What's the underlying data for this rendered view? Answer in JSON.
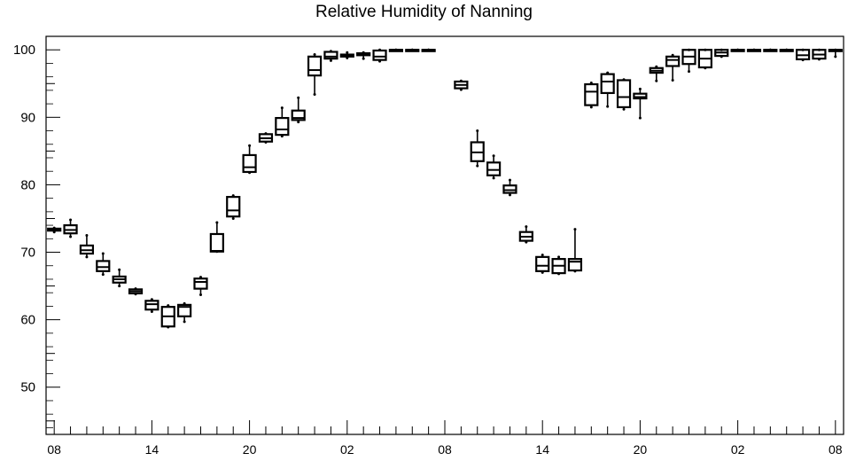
{
  "chart_data": {
    "type": "box",
    "title": "Relative Humidity of Nanning",
    "xlabel": "",
    "ylabel": "",
    "ylim": [
      43,
      102
    ],
    "grid": false,
    "y_ticks": [
      50,
      60,
      70,
      80,
      90,
      100
    ],
    "x_tick_labels": [
      "08",
      "14",
      "20",
      "02",
      "08",
      "14",
      "20",
      "02",
      "08"
    ],
    "x_tick_hours": [
      0,
      6,
      12,
      18,
      24,
      30,
      36,
      42,
      48
    ],
    "x_range_hours": [
      -0.5,
      48.5
    ],
    "boxes": [
      {
        "hour": 0,
        "low": 73.0,
        "q1": 73.2,
        "median": 73.3,
        "q3": 73.5,
        "high": 73.6
      },
      {
        "hour": 1,
        "low": 72.3,
        "q1": 72.8,
        "median": 73.3,
        "q3": 74.0,
        "high": 74.8
      },
      {
        "hour": 2,
        "low": 69.3,
        "q1": 69.8,
        "median": 70.3,
        "q3": 71.0,
        "high": 72.5
      },
      {
        "hour": 3,
        "low": 66.7,
        "q1": 67.2,
        "median": 67.8,
        "q3": 68.7,
        "high": 69.8
      },
      {
        "hour": 4,
        "low": 65.0,
        "q1": 65.5,
        "median": 66.0,
        "q3": 66.4,
        "high": 67.4
      },
      {
        "hour": 5,
        "low": 63.8,
        "q1": 63.9,
        "median": 64.2,
        "q3": 64.5,
        "high": 64.6
      },
      {
        "hour": 6,
        "low": 61.2,
        "q1": 61.5,
        "median": 62.3,
        "q3": 62.8,
        "high": 63.0
      },
      {
        "hour": 7,
        "low": 58.9,
        "q1": 59.0,
        "median": 60.5,
        "q3": 61.9,
        "high": 62.1
      },
      {
        "hour": 8,
        "low": 59.7,
        "q1": 60.5,
        "median": 61.9,
        "q3": 62.2,
        "high": 62.4
      },
      {
        "hour": 9,
        "low": 63.7,
        "q1": 64.6,
        "median": 65.6,
        "q3": 66.1,
        "high": 66.3
      },
      {
        "hour": 10,
        "low": 70.1,
        "q1": 70.1,
        "median": 70.2,
        "q3": 72.7,
        "high": 74.4
      },
      {
        "hour": 11,
        "low": 75.0,
        "q1": 75.3,
        "median": 76.2,
        "q3": 78.2,
        "high": 78.4
      },
      {
        "hour": 12,
        "low": 81.8,
        "q1": 81.9,
        "median": 82.6,
        "q3": 84.4,
        "high": 85.8
      },
      {
        "hour": 13,
        "low": 86.3,
        "q1": 86.4,
        "median": 86.9,
        "q3": 87.5,
        "high": 87.6
      },
      {
        "hour": 14,
        "low": 87.2,
        "q1": 87.4,
        "median": 88.2,
        "q3": 89.9,
        "high": 91.4
      },
      {
        "hour": 15,
        "low": 89.3,
        "q1": 89.6,
        "median": 89.9,
        "q3": 91.0,
        "high": 92.9
      },
      {
        "hour": 16,
        "low": 93.4,
        "q1": 96.2,
        "median": 97.0,
        "q3": 99.0,
        "high": 99.3
      },
      {
        "hour": 17,
        "low": 98.4,
        "q1": 98.7,
        "median": 99.0,
        "q3": 99.7,
        "high": 99.8
      },
      {
        "hour": 18,
        "low": 98.8,
        "q1": 99.0,
        "median": 99.2,
        "q3": 99.3,
        "high": 99.6
      },
      {
        "hour": 19,
        "low": 98.7,
        "q1": 99.2,
        "median": 99.3,
        "q3": 99.5,
        "high": 99.6
      },
      {
        "hour": 20,
        "low": 98.3,
        "q1": 98.5,
        "median": 99.0,
        "q3": 99.9,
        "high": 100.0
      },
      {
        "hour": 21,
        "low": 100.0,
        "q1": 100.0,
        "median": 100.0,
        "q3": 100.0,
        "high": 100.0
      },
      {
        "hour": 22,
        "low": 100.0,
        "q1": 100.0,
        "median": 100.0,
        "q3": 100.0,
        "high": 100.0
      },
      {
        "hour": 23,
        "low": 100.0,
        "q1": 100.0,
        "median": 100.0,
        "q3": 100.0,
        "high": 100.0
      },
      {
        "hour": 25,
        "low": 94.1,
        "q1": 94.3,
        "median": 94.8,
        "q3": 95.3,
        "high": 95.4
      },
      {
        "hour": 26,
        "low": 82.8,
        "q1": 83.5,
        "median": 84.8,
        "q3": 86.3,
        "high": 88.0
      },
      {
        "hour": 27,
        "low": 81.0,
        "q1": 81.4,
        "median": 82.2,
        "q3": 83.3,
        "high": 84.3
      },
      {
        "hour": 28,
        "low": 78.5,
        "q1": 78.8,
        "median": 79.2,
        "q3": 79.9,
        "high": 80.7
      },
      {
        "hour": 29,
        "low": 71.5,
        "q1": 71.7,
        "median": 72.3,
        "q3": 73.0,
        "high": 73.8
      },
      {
        "hour": 30,
        "low": 67.0,
        "q1": 67.2,
        "median": 68.0,
        "q3": 69.3,
        "high": 69.6
      },
      {
        "hour": 31,
        "low": 66.8,
        "q1": 66.9,
        "median": 68.0,
        "q3": 69.0,
        "high": 69.3
      },
      {
        "hour": 32,
        "low": 67.2,
        "q1": 67.3,
        "median": 68.6,
        "q3": 69.0,
        "high": 73.4
      },
      {
        "hour": 33,
        "low": 91.5,
        "q1": 91.8,
        "median": 93.8,
        "q3": 94.9,
        "high": 95.1
      },
      {
        "hour": 34,
        "low": 91.6,
        "q1": 93.6,
        "median": 95.3,
        "q3": 96.4,
        "high": 96.6
      },
      {
        "hour": 35,
        "low": 91.2,
        "q1": 91.5,
        "median": 93.0,
        "q3": 95.5,
        "high": 95.6
      },
      {
        "hour": 36,
        "low": 89.9,
        "q1": 92.8,
        "median": 93.0,
        "q3": 93.5,
        "high": 94.2
      },
      {
        "hour": 37,
        "low": 95.4,
        "q1": 96.6,
        "median": 96.9,
        "q3": 97.3,
        "high": 97.5
      },
      {
        "hour": 38,
        "low": 95.5,
        "q1": 97.6,
        "median": 98.5,
        "q3": 99.0,
        "high": 99.2
      },
      {
        "hour": 39,
        "low": 96.8,
        "q1": 97.9,
        "median": 99.0,
        "q3": 100.0,
        "high": 100.0
      },
      {
        "hour": 40,
        "low": 97.3,
        "q1": 97.4,
        "median": 98.7,
        "q3": 100.0,
        "high": 100.0
      },
      {
        "hour": 41,
        "low": 99.0,
        "q1": 99.1,
        "median": 99.6,
        "q3": 100.0,
        "high": 100.0
      },
      {
        "hour": 42,
        "low": 100.0,
        "q1": 100.0,
        "median": 100.0,
        "q3": 100.0,
        "high": 100.0
      },
      {
        "hour": 43,
        "low": 100.0,
        "q1": 100.0,
        "median": 100.0,
        "q3": 100.0,
        "high": 100.0
      },
      {
        "hour": 44,
        "low": 100.0,
        "q1": 100.0,
        "median": 100.0,
        "q3": 100.0,
        "high": 100.0
      },
      {
        "hour": 45,
        "low": 100.0,
        "q1": 100.0,
        "median": 100.0,
        "q3": 100.0,
        "high": 100.0
      },
      {
        "hour": 46,
        "low": 98.5,
        "q1": 98.6,
        "median": 99.2,
        "q3": 100.0,
        "high": 100.0
      },
      {
        "hour": 47,
        "low": 98.6,
        "q1": 98.7,
        "median": 99.3,
        "q3": 100.0,
        "high": 100.0
      },
      {
        "hour": 48,
        "low": 99.0,
        "q1": 100.0,
        "median": 100.0,
        "q3": 100.0,
        "high": 100.0
      }
    ]
  }
}
